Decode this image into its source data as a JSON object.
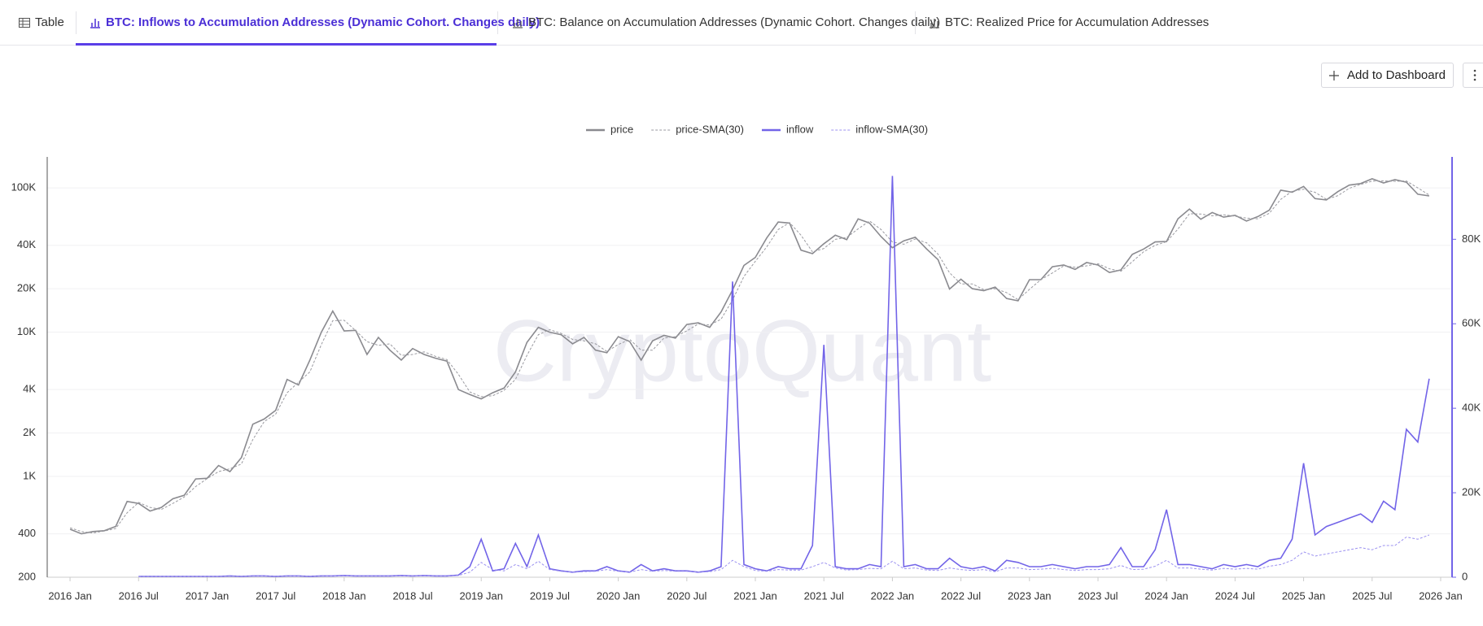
{
  "tabs": [
    "Table",
    "BTC: Inflows to Accumulation Addresses (Dynamic Cohort. Changes daily)",
    "BTC: Balance on Accumulation Addresses (Dynamic Cohort. Changes daily)",
    "BTC: Realized Price for Accumulation Addresses"
  ],
  "add_button": "Add to Dashboard",
  "watermark": "CryptoQuant",
  "chart_data": {
    "type": "line",
    "x": [
      "2016-01",
      "2016-02",
      "2016-03",
      "2016-04",
      "2016-05",
      "2016-06",
      "2016-07",
      "2016-08",
      "2016-09",
      "2016-10",
      "2016-11",
      "2016-12",
      "2017-01",
      "2017-02",
      "2017-03",
      "2017-04",
      "2017-05",
      "2017-06",
      "2017-07",
      "2017-08",
      "2017-09",
      "2017-10",
      "2017-11",
      "2017-12",
      "2018-01",
      "2018-02",
      "2018-03",
      "2018-04",
      "2018-05",
      "2018-06",
      "2018-07",
      "2018-08",
      "2018-09",
      "2018-10",
      "2018-11",
      "2018-12",
      "2019-01",
      "2019-02",
      "2019-03",
      "2019-04",
      "2019-05",
      "2019-06",
      "2019-07",
      "2019-08",
      "2019-09",
      "2019-10",
      "2019-11",
      "2019-12",
      "2020-01",
      "2020-02",
      "2020-03",
      "2020-04",
      "2020-05",
      "2020-06",
      "2020-07",
      "2020-08",
      "2020-09",
      "2020-10",
      "2020-11",
      "2020-12",
      "2021-01",
      "2021-02",
      "2021-03",
      "2021-04",
      "2021-05",
      "2021-06",
      "2021-07",
      "2021-08",
      "2021-09",
      "2021-10",
      "2021-11",
      "2021-12",
      "2022-01",
      "2022-02",
      "2022-03",
      "2022-04",
      "2022-05",
      "2022-06",
      "2022-07",
      "2022-08",
      "2022-09",
      "2022-10",
      "2022-11",
      "2022-12",
      "2023-01",
      "2023-02",
      "2023-03",
      "2023-04",
      "2023-05",
      "2023-06",
      "2023-07",
      "2023-08",
      "2023-09",
      "2023-10",
      "2023-11",
      "2023-12",
      "2024-01",
      "2024-02",
      "2024-03",
      "2024-04",
      "2024-05",
      "2024-06",
      "2024-07",
      "2024-08",
      "2024-09",
      "2024-10",
      "2024-11",
      "2024-12",
      "2025-01",
      "2025-02",
      "2025-03",
      "2025-04",
      "2025-05",
      "2025-06",
      "2025-07",
      "2025-08",
      "2025-09",
      "2025-10",
      "2025-11",
      "2025-12"
    ],
    "series": [
      {
        "name": "price",
        "color": "#8a8a8f",
        "dashed": false,
        "axis": "y",
        "values": [
          430,
          400,
          415,
          420,
          450,
          670,
          650,
          575,
          610,
          700,
          740,
          960,
          970,
          1190,
          1080,
          1350,
          2300,
          2500,
          2870,
          4700,
          4300,
          6400,
          10000,
          14000,
          10200,
          10300,
          7000,
          9200,
          7500,
          6400,
          7700,
          7000,
          6600,
          6300,
          4000,
          3700,
          3450,
          3800,
          4100,
          5300,
          8500,
          10800,
          10000,
          9600,
          8300,
          9200,
          7500,
          7200,
          9300,
          8600,
          6400,
          8700,
          9500,
          9100,
          11300,
          11600,
          10800,
          13800,
          19600,
          29000,
          33000,
          45000,
          58000,
          57000,
          37000,
          35000,
          41000,
          47000,
          43800,
          61000,
          57000,
          46000,
          38500,
          43000,
          45500,
          37700,
          31800,
          19900,
          23300,
          20000,
          19400,
          20500,
          17100,
          16500,
          23100,
          23100,
          28400,
          29200,
          27200,
          30400,
          29200,
          25900,
          27000,
          34600,
          37700,
          42200,
          42500,
          61100,
          71300,
          60600,
          67500,
          62700,
          64600,
          58900,
          63300,
          70200,
          96400,
          93400,
          102400,
          84300,
          82500,
          94200,
          104600,
          107100,
          115700,
          108200,
          114000,
          109500,
          90400,
          88000
        ]
      },
      {
        "name": "price-SMA(30)",
        "color": "#9a9aa0",
        "dashed": true,
        "axis": "y",
        "values": [
          440,
          415,
          405,
          418,
          435,
          560,
          660,
          610,
          590,
          650,
          720,
          850,
          965,
          1080,
          1130,
          1220,
          1800,
          2400,
          2700,
          3800,
          4500,
          5300,
          8200,
          12000,
          12100,
          10250,
          8600,
          8100,
          8300,
          6900,
          7000,
          7300,
          6800,
          6450,
          5100,
          3850,
          3570,
          3620,
          3950,
          4700,
          6900,
          9600,
          10400,
          9800,
          8900,
          8700,
          8300,
          7350,
          8200,
          8900,
          7500,
          7500,
          9100,
          9300,
          10200,
          11400,
          11200,
          12300,
          16700,
          24300,
          31000,
          39000,
          51500,
          57500,
          47000,
          36000,
          38000,
          44000,
          45400,
          52000,
          59000,
          51500,
          42200,
          40700,
          44200,
          41600,
          34700,
          25800,
          21600,
          21600,
          19700,
          20000,
          18800,
          16800,
          19800,
          23100,
          25700,
          28800,
          28200,
          28800,
          29800,
          27500,
          26400,
          30800,
          36100,
          40000,
          42300,
          51800,
          66200,
          65900,
          64100,
          65100,
          63600,
          61700,
          61100,
          66700,
          83300,
          94900,
          97900,
          93300,
          83400,
          88300,
          99400,
          105800,
          111400,
          111900,
          111100,
          111700,
          100000,
          89200
        ]
      },
      {
        "name": "inflow",
        "color": "#7264e8",
        "dashed": false,
        "axis": "y2",
        "values": [
          null,
          null,
          null,
          null,
          null,
          null,
          200,
          200,
          200,
          200,
          200,
          200,
          200,
          200,
          300,
          200,
          300,
          300,
          200,
          300,
          300,
          200,
          300,
          300,
          400,
          300,
          300,
          300,
          300,
          400,
          300,
          400,
          300,
          300,
          500,
          2500,
          9000,
          1500,
          2000,
          8000,
          2500,
          10000,
          2000,
          1500,
          1200,
          1500,
          1500,
          2500,
          1500,
          1200,
          3000,
          1500,
          2000,
          1500,
          1500,
          1200,
          1500,
          2500,
          70000,
          3000,
          2000,
          1500,
          2500,
          2000,
          2000,
          7500,
          55000,
          2500,
          2000,
          2000,
          3000,
          2500,
          95000,
          2500,
          3000,
          2000,
          2000,
          4500,
          2500,
          2000,
          2500,
          1500,
          4000,
          3500,
          2500,
          2500,
          3000,
          2500,
          2000,
          2500,
          2500,
          3000,
          7000,
          2500,
          2500,
          6500,
          16000,
          3000,
          3000,
          2500,
          2000,
          3000,
          2500,
          3000,
          2500,
          4000,
          4500,
          9000,
          27000,
          10000,
          12000,
          13000,
          14000,
          15000,
          13000,
          18000,
          16000,
          35000,
          32000,
          47000
        ]
      },
      {
        "name": "inflow-SMA(30)",
        "color": "#9c92f0",
        "dashed": true,
        "axis": "y2",
        "values": [
          null,
          null,
          null,
          null,
          null,
          null,
          150,
          180,
          190,
          200,
          200,
          200,
          200,
          200,
          240,
          230,
          260,
          280,
          250,
          270,
          280,
          240,
          270,
          290,
          350,
          330,
          310,
          300,
          300,
          350,
          320,
          360,
          330,
          310,
          400,
          1200,
          3500,
          1800,
          1500,
          3000,
          2000,
          3800,
          1800,
          1400,
          1200,
          1300,
          1400,
          1800,
          1400,
          1200,
          1800,
          1400,
          1600,
          1400,
          1400,
          1200,
          1300,
          1800,
          4000,
          2500,
          1600,
          1400,
          1800,
          1700,
          1700,
          2500,
          3500,
          2200,
          1700,
          1800,
          2100,
          2000,
          3800,
          2000,
          2200,
          1700,
          1600,
          2200,
          1800,
          1600,
          1800,
          1300,
          2200,
          2200,
          1800,
          1900,
          2100,
          1800,
          1600,
          1800,
          1800,
          2000,
          2800,
          1800,
          1900,
          2600,
          4000,
          2200,
          2200,
          1900,
          1700,
          2100,
          1900,
          2100,
          1900,
          2600,
          3000,
          4000,
          6000,
          5000,
          5500,
          6000,
          6500,
          7000,
          6500,
          7500,
          7500,
          9500,
          9000,
          10000
        ]
      }
    ],
    "xlim": [
      "2015-11",
      "2026-02"
    ],
    "xticks": [
      {
        "value": "2016-01",
        "label": "2016 Jan"
      },
      {
        "value": "2016-07",
        "label": "2016 Jul"
      },
      {
        "value": "2017-01",
        "label": "2017 Jan"
      },
      {
        "value": "2017-07",
        "label": "2017 Jul"
      },
      {
        "value": "2018-01",
        "label": "2018 Jan"
      },
      {
        "value": "2018-07",
        "label": "2018 Jul"
      },
      {
        "value": "2019-01",
        "label": "2019 Jan"
      },
      {
        "value": "2019-07",
        "label": "2019 Jul"
      },
      {
        "value": "2020-01",
        "label": "2020 Jan"
      },
      {
        "value": "2020-07",
        "label": "2020 Jul"
      },
      {
        "value": "2021-01",
        "label": "2021 Jan"
      },
      {
        "value": "2021-07",
        "label": "2021 Jul"
      },
      {
        "value": "2022-01",
        "label": "2022 Jan"
      },
      {
        "value": "2022-07",
        "label": "2022 Jul"
      },
      {
        "value": "2023-01",
        "label": "2023 Jan"
      },
      {
        "value": "2023-07",
        "label": "2023 Jul"
      },
      {
        "value": "2024-01",
        "label": "2024 Jan"
      },
      {
        "value": "2024-07",
        "label": "2024 Jul"
      },
      {
        "value": "2025-01",
        "label": "2025 Jan"
      },
      {
        "value": "2025-07",
        "label": "2025 Jul"
      },
      {
        "value": "2026-01",
        "label": "2026 Jan"
      }
    ],
    "ylim": [
      200,
      164000
    ],
    "ylog": true,
    "yticks": [
      200,
      400,
      {
        "value": 1000,
        "label": "1K"
      },
      {
        "value": 2000,
        "label": "2K"
      },
      {
        "value": 4000,
        "label": "4K"
      },
      {
        "value": 10000,
        "label": "10K"
      },
      {
        "value": 20000,
        "label": "20K"
      },
      {
        "value": 40000,
        "label": "40K"
      },
      {
        "value": 100000,
        "label": "100K"
      }
    ],
    "y2lim": [
      0,
      99500
    ],
    "y2ticks": [
      0,
      {
        "value": 20000,
        "label": "20K"
      },
      {
        "value": 40000,
        "label": "40K"
      },
      {
        "value": 60000,
        "label": "60K"
      },
      {
        "value": 80000,
        "label": "80K"
      }
    ],
    "grid": true,
    "legend": "top"
  }
}
